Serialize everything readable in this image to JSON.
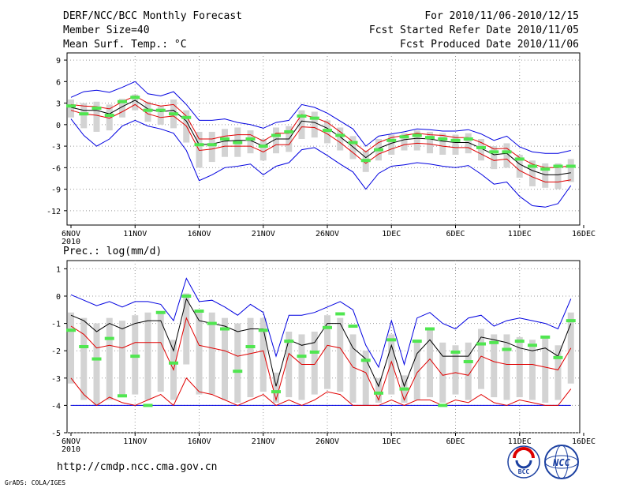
{
  "header": {
    "title": "DERF/NCC/BCC Monthly Forecast",
    "member_size": "Member Size=40",
    "variable": "Mean Surf. Temp.: °C",
    "period": "For 2010/11/06-2010/12/15",
    "started": "Fcst Started Refer Date 2010/11/05",
    "produced": "Fcst Produced Date 2010/11/06"
  },
  "footer": {
    "url": "http://cmdp.ncc.cma.gov.cn",
    "grads": "GrADS: COLA/IGES",
    "logo_bcc": "BCC",
    "logo_ncc": "NCC"
  },
  "colors": {
    "box": "#d3d3d3",
    "mean": "#000000",
    "red": "#e00000",
    "blue": "#0000e0",
    "obs": "#50e650",
    "grid": "#999999"
  },
  "chart_data": [
    {
      "type": "line",
      "title": "Mean Surf. Temp.: °C",
      "ylabel": "°C",
      "ylim": [
        -14,
        10
      ],
      "yticks": [
        "9",
        "6",
        "3",
        "0",
        "-3",
        "-6",
        "-9",
        "-12"
      ],
      "ytick_values": [
        9,
        6,
        3,
        0,
        -3,
        -6,
        -9,
        -12
      ],
      "xticks": [
        "6NOV",
        "11NOV",
        "16NOV",
        "21NOV",
        "26NOV",
        "1DEC",
        "6DEC",
        "11DEC",
        "16DEC"
      ],
      "xtick_days": [
        0,
        5,
        10,
        15,
        20,
        25,
        30,
        35,
        40
      ],
      "xtick_sublabel": "2010",
      "grid": true,
      "x_days": [
        0,
        1,
        2,
        3,
        4,
        5,
        6,
        7,
        8,
        9,
        10,
        11,
        12,
        13,
        14,
        15,
        16,
        17,
        18,
        19,
        20,
        21,
        22,
        23,
        24,
        25,
        26,
        27,
        28,
        29,
        30,
        31,
        32,
        33,
        34,
        35,
        36,
        37,
        38,
        39
      ],
      "mean": [
        2.4,
        2.0,
        2.0,
        1.5,
        2.5,
        3.4,
        2.2,
        1.8,
        2.0,
        0.5,
        -2.8,
        -2.7,
        -2.3,
        -2.2,
        -2.2,
        -3.0,
        -2.0,
        -2.0,
        0.5,
        0.3,
        -0.5,
        -1.7,
        -3.1,
        -4.6,
        -3.3,
        -2.6,
        -2.1,
        -1.9,
        -2.0,
        -2.3,
        -2.5,
        -2.5,
        -3.3,
        -4.2,
        -4.0,
        -5.5,
        -6.4,
        -7.0,
        -7.0,
        -6.7
      ],
      "red_upper": [
        2.8,
        2.6,
        2.5,
        2.2,
        3.2,
        4.0,
        3.0,
        2.6,
        2.8,
        1.2,
        -2.0,
        -2.0,
        -1.6,
        -1.4,
        -1.4,
        -2.3,
        -1.2,
        -1.2,
        1.4,
        1.0,
        0.3,
        -1.0,
        -2.4,
        -3.8,
        -2.5,
        -1.8,
        -1.5,
        -1.2,
        -1.4,
        -1.5,
        -1.8,
        -1.8,
        -2.5,
        -3.4,
        -3.3,
        -4.6,
        -5.5,
        -6.0,
        -6.0,
        -5.7
      ],
      "red_lower": [
        2.0,
        1.5,
        1.3,
        0.9,
        1.8,
        2.8,
        1.5,
        1.0,
        1.2,
        -0.2,
        -3.6,
        -3.4,
        -3.0,
        -3.0,
        -3.0,
        -3.8,
        -2.8,
        -2.8,
        -0.3,
        -0.4,
        -1.3,
        -2.5,
        -3.9,
        -5.4,
        -4.1,
        -3.4,
        -2.8,
        -2.6,
        -2.7,
        -3.0,
        -3.2,
        -3.2,
        -4.1,
        -5.0,
        -4.8,
        -6.4,
        -7.3,
        -8.0,
        -8.0,
        -7.7
      ],
      "blue_upper": [
        3.8,
        4.6,
        4.8,
        4.5,
        5.2,
        6.0,
        4.3,
        4.0,
        4.6,
        2.8,
        0.6,
        0.6,
        0.8,
        0.3,
        0.0,
        -0.5,
        0.3,
        0.6,
        2.8,
        2.4,
        1.6,
        0.5,
        -0.6,
        -3.0,
        -1.6,
        -1.3,
        -1.0,
        -0.6,
        -0.7,
        -0.9,
        -0.9,
        -0.7,
        -1.3,
        -2.2,
        -1.6,
        -3.1,
        -3.8,
        -4.0,
        -4.0,
        -3.6
      ],
      "blue_lower": [
        0.8,
        -1.5,
        -3.0,
        -2.0,
        -0.2,
        0.6,
        -0.2,
        -0.6,
        -1.2,
        -3.6,
        -7.8,
        -7.0,
        -6.0,
        -5.8,
        -5.5,
        -7.0,
        -5.8,
        -5.3,
        -3.5,
        -3.2,
        -4.3,
        -5.5,
        -6.6,
        -9.0,
        -6.8,
        -5.8,
        -5.6,
        -5.3,
        -5.5,
        -5.8,
        -6.0,
        -5.7,
        -6.9,
        -8.3,
        -8.0,
        -10.0,
        -11.3,
        -11.5,
        -11.0,
        -8.5
      ],
      "box_high": [
        3.5,
        3.0,
        3.2,
        2.8,
        3.6,
        4.2,
        3.2,
        2.6,
        3.5,
        2.0,
        -1.0,
        -1.0,
        -0.6,
        -0.4,
        -0.8,
        -2.0,
        -0.4,
        -0.2,
        2.0,
        1.8,
        0.6,
        -0.4,
        -1.6,
        -3.6,
        -2.0,
        -1.4,
        -1.2,
        -0.8,
        -1.0,
        -1.2,
        -1.4,
        -1.2,
        -2.0,
        -3.0,
        -2.6,
        -4.2,
        -5.0,
        -5.4,
        -5.4,
        -4.8
      ],
      "box_low": [
        1.0,
        -0.5,
        -1.0,
        -0.8,
        1.0,
        2.0,
        0.4,
        0.0,
        -0.5,
        -2.5,
        -6.0,
        -5.2,
        -4.5,
        -4.5,
        -4.0,
        -5.0,
        -4.0,
        -3.8,
        -2.0,
        -1.8,
        -2.6,
        -3.6,
        -4.8,
        -6.6,
        -5.0,
        -4.2,
        -3.6,
        -3.6,
        -4.0,
        -4.2,
        -4.2,
        -4.0,
        -5.0,
        -6.2,
        -6.0,
        -7.4,
        -8.6,
        -8.8,
        -9.0,
        -8.0
      ],
      "observed": [
        2.6,
        1.5,
        2.3,
        1.3,
        3.2,
        3.8,
        2.0,
        2.0,
        1.5,
        1.0,
        -2.8,
        -2.8,
        -2.0,
        -2.5,
        -2.0,
        -3.0,
        -1.5,
        -1.0,
        1.2,
        0.9,
        -0.8,
        -1.5,
        -2.5,
        -5.0,
        -3.5,
        -2.2,
        -1.7,
        -1.5,
        -1.8,
        -2.0,
        -2.2,
        -2.0,
        -3.2,
        -3.8,
        -3.8,
        -4.8,
        -5.8,
        -6.2,
        -5.8,
        -5.8
      ]
    },
    {
      "type": "line",
      "title": "Prec.: log(mm/d)",
      "ylabel": "log(mm/d)",
      "ylim": [
        -5,
        1.3
      ],
      "yticks": [
        "1",
        "0",
        "-1",
        "-2",
        "-3",
        "-4",
        "-5"
      ],
      "ytick_values": [
        1,
        0,
        -1,
        -2,
        -3,
        -4,
        -5
      ],
      "xticks": [
        "6NOV",
        "11NOV",
        "16NOV",
        "21NOV",
        "26NOV",
        "1DEC",
        "6DEC",
        "11DEC",
        "16DEC"
      ],
      "xtick_days": [
        0,
        5,
        10,
        15,
        20,
        25,
        30,
        35,
        40
      ],
      "xtick_sublabel": "2010",
      "grid": true,
      "x_days": [
        0,
        1,
        2,
        3,
        4,
        5,
        6,
        7,
        8,
        9,
        10,
        11,
        12,
        13,
        14,
        15,
        16,
        17,
        18,
        19,
        20,
        21,
        22,
        23,
        24,
        25,
        26,
        27,
        28,
        29,
        30,
        31,
        32,
        33,
        34,
        35,
        36,
        37,
        38,
        39
      ],
      "mean": [
        -0.7,
        -0.9,
        -1.3,
        -1.0,
        -1.2,
        -1.0,
        -0.9,
        -0.9,
        -2.0,
        -0.1,
        -0.9,
        -1.0,
        -1.1,
        -1.3,
        -1.2,
        -1.2,
        -3.3,
        -1.6,
        -1.8,
        -1.7,
        -1.0,
        -1.0,
        -1.9,
        -2.3,
        -3.3,
        -1.8,
        -3.3,
        -2.1,
        -1.6,
        -2.2,
        -2.2,
        -2.2,
        -1.5,
        -1.6,
        -1.7,
        -1.9,
        -2.0,
        -1.9,
        -2.2,
        -1.0
      ],
      "red_upper": [
        -1.1,
        -1.4,
        -1.9,
        -1.8,
        -1.9,
        -1.7,
        -1.7,
        -1.7,
        -2.7,
        -0.8,
        -1.8,
        -1.9,
        -2.0,
        -2.2,
        -2.1,
        -2.0,
        -3.8,
        -2.1,
        -2.5,
        -2.5,
        -1.8,
        -1.9,
        -2.6,
        -2.8,
        -3.8,
        -2.4,
        -3.8,
        -2.8,
        -2.3,
        -2.9,
        -2.8,
        -2.9,
        -2.2,
        -2.4,
        -2.5,
        -2.5,
        -2.5,
        -2.6,
        -2.7,
        -1.9
      ],
      "red_lower": [
        -3.0,
        -3.6,
        -4.0,
        -3.7,
        -3.9,
        -4.0,
        -3.8,
        -3.6,
        -4.0,
        -3.0,
        -3.5,
        -3.6,
        -3.8,
        -4.0,
        -3.8,
        -3.6,
        -4.0,
        -3.8,
        -4.0,
        -3.8,
        -3.5,
        -3.6,
        -4.0,
        -4.0,
        -4.0,
        -3.8,
        -4.0,
        -3.8,
        -3.8,
        -4.0,
        -3.8,
        -3.9,
        -3.6,
        -3.9,
        -4.0,
        -3.8,
        -3.9,
        -4.0,
        -4.0,
        -3.4
      ],
      "blue_upper": [
        0.05,
        -0.15,
        -0.35,
        -0.2,
        -0.4,
        -0.2,
        -0.2,
        -0.3,
        -0.9,
        0.65,
        -0.2,
        -0.15,
        -0.4,
        -0.7,
        -0.3,
        -0.6,
        -2.2,
        -0.7,
        -0.7,
        -0.6,
        -0.4,
        -0.2,
        -0.5,
        -1.8,
        -2.6,
        -0.9,
        -2.5,
        -0.8,
        -0.6,
        -1.0,
        -1.2,
        -0.8,
        -0.7,
        -1.1,
        -0.9,
        -0.8,
        -0.9,
        -1.0,
        -1.2,
        -0.1
      ],
      "blue_lower": [
        -4,
        -4,
        -4,
        -4,
        -4,
        -4,
        -4,
        -4,
        -4,
        -4,
        -4,
        -4,
        -4,
        -4,
        -4,
        -4,
        -4,
        -4,
        -4,
        -4,
        -4,
        -4,
        -4,
        -4,
        -4,
        -4,
        -4,
        -4,
        -4,
        -4,
        -4,
        -4,
        -4,
        -4,
        -4,
        -4,
        -4,
        -4,
        -4,
        -4
      ],
      "box_high": [
        -0.6,
        -0.8,
        -1.0,
        -0.8,
        -0.9,
        -0.7,
        -0.6,
        -0.6,
        -1.6,
        0.1,
        -0.5,
        -0.6,
        -0.8,
        -1.0,
        -0.8,
        -0.8,
        -2.8,
        -1.3,
        -1.4,
        -1.3,
        -0.7,
        -0.8,
        -1.4,
        -2.0,
        -3.0,
        -1.4,
        -2.9,
        -1.6,
        -1.2,
        -1.7,
        -1.8,
        -1.7,
        -1.2,
        -1.4,
        -1.4,
        -1.5,
        -1.6,
        -1.5,
        -1.8,
        -0.6
      ],
      "box_low": [
        -3.2,
        -3.8,
        -4.0,
        -3.8,
        -3.6,
        -3.6,
        -3.8,
        -3.5,
        -3.8,
        -2.5,
        -3.6,
        -3.6,
        -3.8,
        -3.9,
        -3.7,
        -3.5,
        -3.9,
        -3.7,
        -3.8,
        -3.6,
        -3.4,
        -3.5,
        -3.9,
        -4.0,
        -3.9,
        -3.6,
        -3.9,
        -3.8,
        -3.7,
        -3.9,
        -3.6,
        -3.8,
        -3.4,
        -3.7,
        -3.8,
        -3.7,
        -3.8,
        -3.9,
        -3.8,
        -3.2
      ],
      "observed": [
        -1.25,
        -1.85,
        -2.3,
        -1.55,
        -3.65,
        -2.2,
        -4.0,
        -0.6,
        -2.45,
        0.0,
        -0.55,
        -1.0,
        -1.2,
        -2.75,
        -1.85,
        -1.25,
        -3.5,
        -1.65,
        -2.2,
        -2.05,
        -1.15,
        -0.65,
        -1.1,
        -2.35,
        -3.55,
        -1.6,
        -3.4,
        -1.65,
        -1.2,
        -4.0,
        -2.05,
        -2.4,
        -1.75,
        -1.7,
        -1.95,
        -1.65,
        -1.8,
        -1.5,
        -2.25,
        -0.9
      ]
    }
  ]
}
